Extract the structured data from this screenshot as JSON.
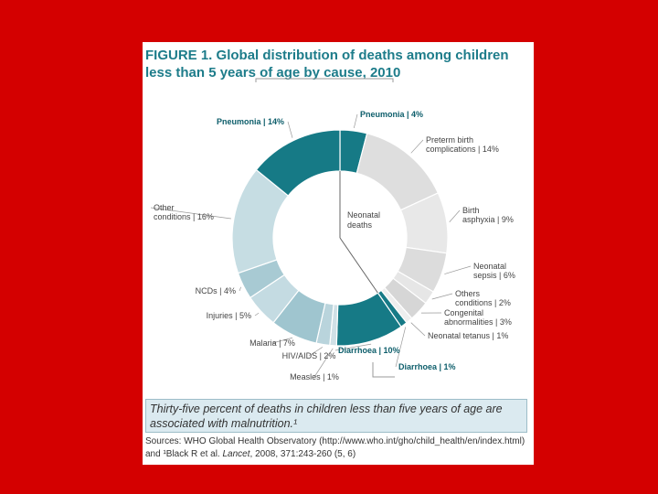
{
  "title": {
    "figure": "FIGURE 1.",
    "text": "Global distribution of deaths among children less than 5 years of age by cause, 2010"
  },
  "chart_data": {
    "type": "pie",
    "title": "Global distribution of deaths among children less than 5 years of age by cause, 2010",
    "center_label_line1": "Neonatal",
    "center_label_line2": "deaths",
    "slices": [
      {
        "label": "Pneumonia | 4%",
        "value": 4,
        "color": "#167a86",
        "group": "neonatal",
        "bold": true
      },
      {
        "label_lines": [
          "Preterm birth",
          "complications | 14%"
        ],
        "label": "Preterm birth complications | 14%",
        "value": 14,
        "color": "#dedede",
        "group": "neonatal"
      },
      {
        "label_lines": [
          "Birth",
          "asphyxia | 9%"
        ],
        "label": "Birth asphyxia | 9%",
        "value": 9,
        "color": "#e8e8e8",
        "group": "neonatal"
      },
      {
        "label_lines": [
          "Neonatal",
          "sepsis | 6%"
        ],
        "label": "Neonatal sepsis | 6%",
        "value": 6,
        "color": "#dcdcdc",
        "group": "neonatal"
      },
      {
        "label_lines": [
          "Others",
          "conditions | 2%"
        ],
        "label": "Others conditions | 2%",
        "value": 2,
        "color": "#e6e6e6",
        "group": "neonatal"
      },
      {
        "label_lines": [
          "Congenital",
          "abnormalities | 3%"
        ],
        "label": "Congenital abnormalities | 3%",
        "value": 3,
        "color": "#d6d6d6",
        "group": "neonatal"
      },
      {
        "label": "Neonatal tetanus | 1%",
        "value": 1,
        "color": "#eeeeee",
        "group": "neonatal"
      },
      {
        "label": "Diarrhoea | 1%",
        "value": 1,
        "color": "#167a86",
        "group": "neonatal",
        "bold": true
      },
      {
        "label": "Diarrhoea | 10%",
        "value": 10,
        "color": "#167a86",
        "group": "post",
        "bold": true
      },
      {
        "label": "Measles | 1%",
        "value": 1,
        "color": "#cfe0e6",
        "group": "post"
      },
      {
        "label": "HIV/AIDS | 2%",
        "value": 2,
        "color": "#b9d4dc",
        "group": "post"
      },
      {
        "label": "Malaria | 7%",
        "value": 7,
        "color": "#9fc5cf",
        "group": "post"
      },
      {
        "label": "Injuries | 5%",
        "value": 5,
        "color": "#c4dbe2",
        "group": "post"
      },
      {
        "label": "NCDs | 4%",
        "value": 4,
        "color": "#a8cad3",
        "group": "post"
      },
      {
        "label_lines": [
          "Other",
          "conditions | 16%"
        ],
        "label": "Other conditions | 16%",
        "value": 16,
        "color": "#c6dde3",
        "group": "post"
      },
      {
        "label": "Pneumonia | 14%",
        "value": 14,
        "color": "#167a86",
        "group": "post",
        "bold": true
      }
    ]
  },
  "callout": "Thirty-five percent of deaths in children less than five years of age are associated with malnutrition.¹",
  "sources": {
    "prefix": "Sources: WHO Global Health Observatory (http://www.who.int/gho/child_health/en/index.html) and ¹Black R et al.",
    "journal": "Lancet",
    "suffix": ", 2008, 371:243-260 (5, 6)"
  }
}
